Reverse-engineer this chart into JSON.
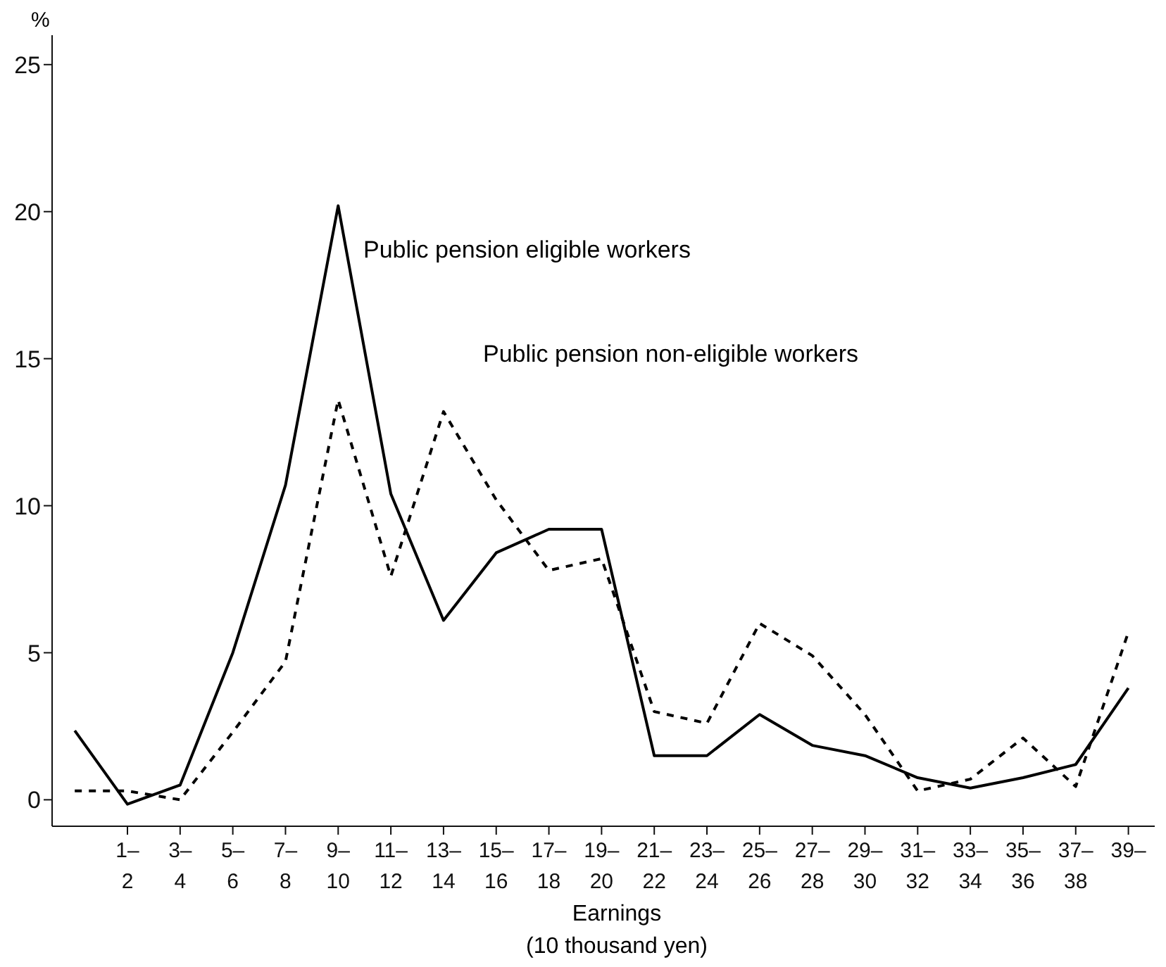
{
  "chart_data": {
    "type": "line",
    "categories": [
      null,
      "1–\n2",
      "3–\n4",
      "5–\n6",
      "7–\n8",
      "9–\n10",
      "11–\n12",
      "13–\n14",
      "15–\n16",
      "17–\n18",
      "19–\n20",
      "21–\n22",
      "23–\n24",
      "25–\n26",
      "27–\n28",
      "29–\n30",
      "31–\n32",
      "33–\n34",
      "35–\n36",
      "37–\n38",
      "39–"
    ],
    "series": [
      {
        "name": "Public pension eligible workers",
        "color": "#000000",
        "line_style": "solid",
        "values": [
          2.35,
          -0.15,
          0.5,
          5.0,
          10.7,
          20.2,
          10.4,
          6.1,
          8.4,
          9.2,
          9.2,
          1.5,
          1.5,
          2.9,
          1.85,
          1.5,
          0.75,
          0.4,
          0.75,
          1.2,
          3.8
        ]
      },
      {
        "name": "Public pension non-eligible workers",
        "color": "#000000",
        "line_style": "dashed",
        "values": [
          0.3,
          0.3,
          0.0,
          2.3,
          4.7,
          13.6,
          7.6,
          13.2,
          10.2,
          7.8,
          8.2,
          3.0,
          2.6,
          6.0,
          4.9,
          2.9,
          0.3,
          0.7,
          2.1,
          0.45,
          5.7
        ]
      }
    ],
    "xlabel": "Earnings\n(10 thousand yen)",
    "ylabel": "%",
    "ylim": [
      -0.9,
      26
    ],
    "yticks": [
      0,
      5,
      10,
      15,
      20,
      25
    ],
    "grid": false,
    "legend": false,
    "marker": "none"
  }
}
